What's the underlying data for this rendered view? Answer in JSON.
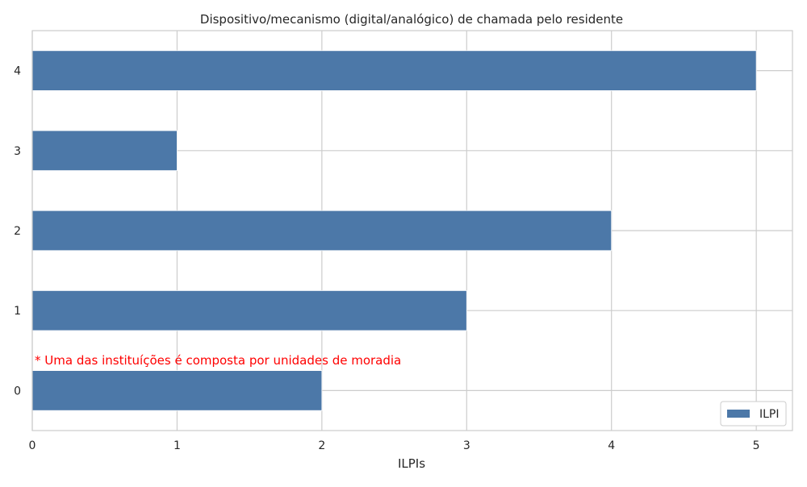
{
  "chart_data": {
    "type": "bar",
    "orientation": "horizontal",
    "title": "Dispositivo/mecanismo (digital/analógico) de chamada pelo residente",
    "xlabel": "ILPIs",
    "ylabel": "",
    "categories": [
      "0",
      "1",
      "2",
      "3",
      "4"
    ],
    "series": [
      {
        "name": "ILPI",
        "values": [
          2,
          3,
          4,
          1,
          5
        ]
      }
    ],
    "xlim": [
      0,
      5.25
    ],
    "xticks": [
      "0",
      "1",
      "2",
      "3",
      "4",
      "5"
    ],
    "grid": true,
    "legend_position": "bottom-right",
    "bar_color": "#4c78a8",
    "annotation": {
      "text": "* Uma das instituíções é composta por unidades de moradia",
      "color": "#ff0000"
    }
  }
}
